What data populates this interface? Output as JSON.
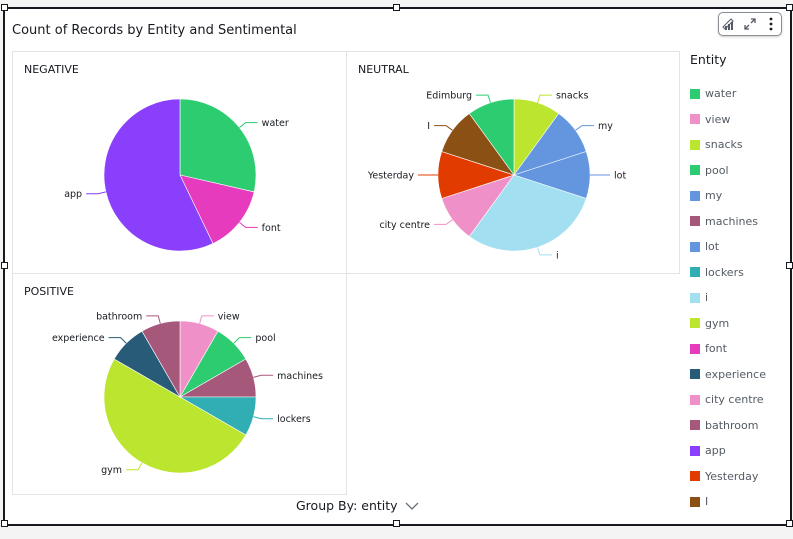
{
  "title": "Count of Records by Entity and Sentimental",
  "toolbar": {
    "icons": [
      "visual-type-icon",
      "expand-icon",
      "more-options-icon"
    ]
  },
  "legend": {
    "title": "Entity",
    "items": [
      {
        "label": "water",
        "color": "#2ecc71"
      },
      {
        "label": "view",
        "color": "#ef91c8"
      },
      {
        "label": "snacks",
        "color": "#bbe52f"
      },
      {
        "label": "pool",
        "color": "#2ecc71"
      },
      {
        "label": "my",
        "color": "#6496e0"
      },
      {
        "label": "machines",
        "color": "#a6587b"
      },
      {
        "label": "lot",
        "color": "#6496e0"
      },
      {
        "label": "lockers",
        "color": "#31aeb3"
      },
      {
        "label": "i",
        "color": "#a2dff0"
      },
      {
        "label": "gym",
        "color": "#bbe52f"
      },
      {
        "label": "font",
        "color": "#e53bbc"
      },
      {
        "label": "experience",
        "color": "#285b78"
      },
      {
        "label": "city centre",
        "color": "#ef91c8"
      },
      {
        "label": "bathroom",
        "color": "#a6587b"
      },
      {
        "label": "app",
        "color": "#8a3ffc"
      },
      {
        "label": "Yesterday",
        "color": "#e13b00"
      },
      {
        "label": "I",
        "color": "#8b5013"
      }
    ]
  },
  "group_by": {
    "label": "Group By: entity"
  },
  "chart_data": [
    {
      "type": "pie",
      "title": "NEGATIVE",
      "categories": [
        "water",
        "font",
        "app"
      ],
      "values": [
        2,
        1,
        4
      ],
      "colors": [
        "#2ecc71",
        "#e53bbc",
        "#8a3ffc"
      ]
    },
    {
      "type": "pie",
      "title": "NEUTRAL",
      "categories": [
        "snacks",
        "my",
        "lot",
        "i",
        "city centre",
        "Yesterday",
        "I",
        "Edimburg"
      ],
      "values": [
        1,
        1,
        1,
        3,
        1,
        1,
        1,
        1
      ],
      "colors": [
        "#bbe52f",
        "#6496e0",
        "#6496e0",
        "#a2dff0",
        "#ef91c8",
        "#e13b00",
        "#8b5013",
        "#2ecc71"
      ]
    },
    {
      "type": "pie",
      "title": "POSITIVE",
      "categories": [
        "view",
        "pool",
        "machines",
        "lockers",
        "gym",
        "experience",
        "bathroom"
      ],
      "values": [
        1,
        1,
        1,
        1,
        6,
        1,
        1
      ],
      "colors": [
        "#ef91c8",
        "#2ecc71",
        "#a6587b",
        "#31aeb3",
        "#bbe52f",
        "#285b78",
        "#a6587b"
      ]
    }
  ]
}
